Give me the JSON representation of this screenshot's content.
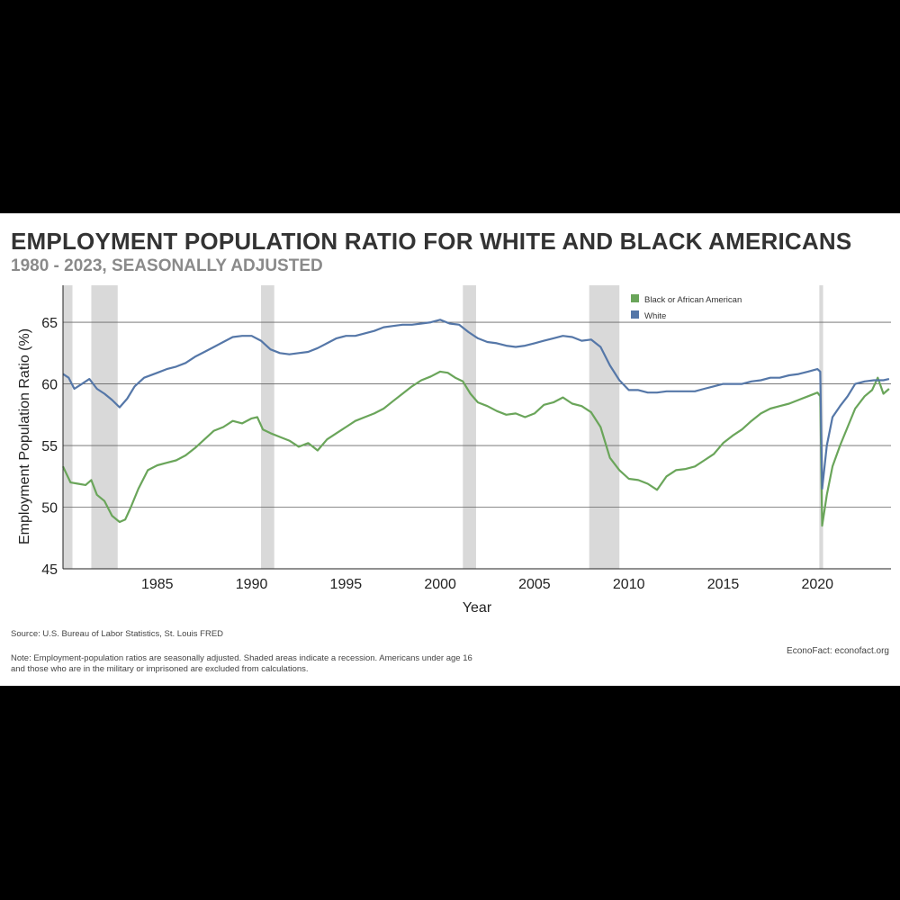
{
  "title": "EMPLOYMENT POPULATION RATIO FOR WHITE AND BLACK AMERICANS",
  "subtitle": "1980 - 2023, SEASONALLY ADJUSTED",
  "source": "Source: U.S. Bureau of Labor Statistics, St. Louis FRED",
  "note": "Note: Employment-population ratios are seasonally adjusted. Shaded areas indicate a recession. Americans under age 16 and those who are in the military or imprisoned are excluded from calculations.",
  "credit": "EconoFact: econofact.org",
  "colors": {
    "black_series": "#6aa55a",
    "white_series": "#5577a8",
    "recession": "#d9d9d9",
    "grid": "#555555"
  },
  "chart_data": {
    "type": "line",
    "title": "EMPLOYMENT POPULATION RATIO FOR WHITE AND BLACK AMERICANS",
    "xlabel": "Year",
    "ylabel": "Employment Population Ratio (%)",
    "xlim": [
      1980.0,
      2023.9
    ],
    "ylim": [
      45,
      68
    ],
    "xticks": [
      1985,
      1990,
      1995,
      2000,
      2005,
      2010,
      2015,
      2020
    ],
    "yticks": [
      45,
      50,
      55,
      60,
      65
    ],
    "legend_position": "top-right",
    "recessions": [
      [
        1980.0,
        1980.5
      ],
      [
        1981.5,
        1982.9
      ],
      [
        1990.5,
        1991.2
      ],
      [
        2001.2,
        2001.9
      ],
      [
        2007.9,
        2009.5
      ],
      [
        2020.1,
        2020.3
      ]
    ],
    "series": [
      {
        "name": "Black or African American",
        "color": "#6aa55a",
        "points": [
          [
            1980.0,
            53.3
          ],
          [
            1980.4,
            52.0
          ],
          [
            1980.8,
            51.9
          ],
          [
            1981.2,
            51.8
          ],
          [
            1981.5,
            52.2
          ],
          [
            1981.8,
            51.0
          ],
          [
            1982.2,
            50.5
          ],
          [
            1982.6,
            49.3
          ],
          [
            1983.0,
            48.8
          ],
          [
            1983.3,
            49.0
          ],
          [
            1983.6,
            50.0
          ],
          [
            1984.0,
            51.5
          ],
          [
            1984.5,
            53.0
          ],
          [
            1985.0,
            53.4
          ],
          [
            1985.5,
            53.6
          ],
          [
            1986.0,
            53.8
          ],
          [
            1986.5,
            54.2
          ],
          [
            1987.0,
            54.8
          ],
          [
            1987.5,
            55.5
          ],
          [
            1988.0,
            56.2
          ],
          [
            1988.5,
            56.5
          ],
          [
            1989.0,
            57.0
          ],
          [
            1989.5,
            56.8
          ],
          [
            1990.0,
            57.2
          ],
          [
            1990.3,
            57.3
          ],
          [
            1990.6,
            56.3
          ],
          [
            1991.0,
            56.0
          ],
          [
            1991.5,
            55.7
          ],
          [
            1992.0,
            55.4
          ],
          [
            1992.5,
            54.9
          ],
          [
            1993.0,
            55.2
          ],
          [
            1993.5,
            54.6
          ],
          [
            1994.0,
            55.5
          ],
          [
            1994.5,
            56.0
          ],
          [
            1995.0,
            56.5
          ],
          [
            1995.5,
            57.0
          ],
          [
            1996.0,
            57.3
          ],
          [
            1996.5,
            57.6
          ],
          [
            1997.0,
            58.0
          ],
          [
            1997.5,
            58.6
          ],
          [
            1998.0,
            59.2
          ],
          [
            1998.5,
            59.8
          ],
          [
            1999.0,
            60.3
          ],
          [
            1999.5,
            60.6
          ],
          [
            2000.0,
            61.0
          ],
          [
            2000.4,
            60.9
          ],
          [
            2000.8,
            60.5
          ],
          [
            2001.2,
            60.2
          ],
          [
            2001.6,
            59.2
          ],
          [
            2002.0,
            58.5
          ],
          [
            2002.5,
            58.2
          ],
          [
            2003.0,
            57.8
          ],
          [
            2003.5,
            57.5
          ],
          [
            2004.0,
            57.6
          ],
          [
            2004.5,
            57.3
          ],
          [
            2005.0,
            57.6
          ],
          [
            2005.5,
            58.3
          ],
          [
            2006.0,
            58.5
          ],
          [
            2006.5,
            58.9
          ],
          [
            2007.0,
            58.4
          ],
          [
            2007.5,
            58.2
          ],
          [
            2008.0,
            57.7
          ],
          [
            2008.5,
            56.5
          ],
          [
            2009.0,
            54.0
          ],
          [
            2009.5,
            53.0
          ],
          [
            2010.0,
            52.3
          ],
          [
            2010.5,
            52.2
          ],
          [
            2011.0,
            51.9
          ],
          [
            2011.5,
            51.4
          ],
          [
            2012.0,
            52.5
          ],
          [
            2012.5,
            53.0
          ],
          [
            2013.0,
            53.1
          ],
          [
            2013.5,
            53.3
          ],
          [
            2014.0,
            53.8
          ],
          [
            2014.5,
            54.3
          ],
          [
            2015.0,
            55.2
          ],
          [
            2015.5,
            55.8
          ],
          [
            2016.0,
            56.3
          ],
          [
            2016.5,
            57.0
          ],
          [
            2017.0,
            57.6
          ],
          [
            2017.5,
            58.0
          ],
          [
            2018.0,
            58.2
          ],
          [
            2018.5,
            58.4
          ],
          [
            2019.0,
            58.7
          ],
          [
            2019.5,
            59.0
          ],
          [
            2020.0,
            59.3
          ],
          [
            2020.15,
            59.0
          ],
          [
            2020.25,
            48.5
          ],
          [
            2020.5,
            51.0
          ],
          [
            2020.8,
            53.3
          ],
          [
            2021.2,
            55.0
          ],
          [
            2021.6,
            56.5
          ],
          [
            2022.0,
            58.0
          ],
          [
            2022.5,
            59.0
          ],
          [
            2022.9,
            59.5
          ],
          [
            2023.2,
            60.5
          ],
          [
            2023.5,
            59.2
          ],
          [
            2023.8,
            59.6
          ]
        ]
      },
      {
        "name": "White",
        "color": "#5577a8",
        "points": [
          [
            1980.0,
            60.8
          ],
          [
            1980.3,
            60.5
          ],
          [
            1980.6,
            59.6
          ],
          [
            1981.0,
            60.0
          ],
          [
            1981.4,
            60.4
          ],
          [
            1981.8,
            59.6
          ],
          [
            1982.2,
            59.2
          ],
          [
            1982.6,
            58.7
          ],
          [
            1983.0,
            58.1
          ],
          [
            1983.4,
            58.8
          ],
          [
            1983.8,
            59.8
          ],
          [
            1984.3,
            60.5
          ],
          [
            1985.0,
            60.9
          ],
          [
            1985.5,
            61.2
          ],
          [
            1986.0,
            61.4
          ],
          [
            1986.5,
            61.7
          ],
          [
            1987.0,
            62.2
          ],
          [
            1987.5,
            62.6
          ],
          [
            1988.0,
            63.0
          ],
          [
            1988.5,
            63.4
          ],
          [
            1989.0,
            63.8
          ],
          [
            1989.5,
            63.9
          ],
          [
            1990.0,
            63.9
          ],
          [
            1990.5,
            63.5
          ],
          [
            1991.0,
            62.8
          ],
          [
            1991.5,
            62.5
          ],
          [
            1992.0,
            62.4
          ],
          [
            1992.5,
            62.5
          ],
          [
            1993.0,
            62.6
          ],
          [
            1993.5,
            62.9
          ],
          [
            1994.0,
            63.3
          ],
          [
            1994.5,
            63.7
          ],
          [
            1995.0,
            63.9
          ],
          [
            1995.5,
            63.9
          ],
          [
            1996.0,
            64.1
          ],
          [
            1996.5,
            64.3
          ],
          [
            1997.0,
            64.6
          ],
          [
            1997.5,
            64.7
          ],
          [
            1998.0,
            64.8
          ],
          [
            1998.5,
            64.8
          ],
          [
            1999.0,
            64.9
          ],
          [
            1999.5,
            65.0
          ],
          [
            2000.0,
            65.2
          ],
          [
            2000.5,
            64.9
          ],
          [
            2001.0,
            64.8
          ],
          [
            2001.5,
            64.2
          ],
          [
            2002.0,
            63.7
          ],
          [
            2002.5,
            63.4
          ],
          [
            2003.0,
            63.3
          ],
          [
            2003.5,
            63.1
          ],
          [
            2004.0,
            63.0
          ],
          [
            2004.5,
            63.1
          ],
          [
            2005.0,
            63.3
          ],
          [
            2005.5,
            63.5
          ],
          [
            2006.0,
            63.7
          ],
          [
            2006.5,
            63.9
          ],
          [
            2007.0,
            63.8
          ],
          [
            2007.5,
            63.5
          ],
          [
            2008.0,
            63.6
          ],
          [
            2008.5,
            63.0
          ],
          [
            2009.0,
            61.5
          ],
          [
            2009.5,
            60.3
          ],
          [
            2010.0,
            59.5
          ],
          [
            2010.5,
            59.5
          ],
          [
            2011.0,
            59.3
          ],
          [
            2011.5,
            59.3
          ],
          [
            2012.0,
            59.4
          ],
          [
            2012.5,
            59.4
          ],
          [
            2013.0,
            59.4
          ],
          [
            2013.5,
            59.4
          ],
          [
            2014.0,
            59.6
          ],
          [
            2014.5,
            59.8
          ],
          [
            2015.0,
            60.0
          ],
          [
            2015.5,
            60.0
          ],
          [
            2016.0,
            60.0
          ],
          [
            2016.5,
            60.2
          ],
          [
            2017.0,
            60.3
          ],
          [
            2017.5,
            60.5
          ],
          [
            2018.0,
            60.5
          ],
          [
            2018.5,
            60.7
          ],
          [
            2019.0,
            60.8
          ],
          [
            2019.5,
            61.0
          ],
          [
            2020.0,
            61.2
          ],
          [
            2020.15,
            61.0
          ],
          [
            2020.25,
            51.5
          ],
          [
            2020.5,
            55.0
          ],
          [
            2020.8,
            57.3
          ],
          [
            2021.2,
            58.2
          ],
          [
            2021.6,
            59.0
          ],
          [
            2022.0,
            60.0
          ],
          [
            2022.5,
            60.2
          ],
          [
            2023.0,
            60.3
          ],
          [
            2023.5,
            60.3
          ],
          [
            2023.8,
            60.4
          ]
        ]
      }
    ]
  }
}
